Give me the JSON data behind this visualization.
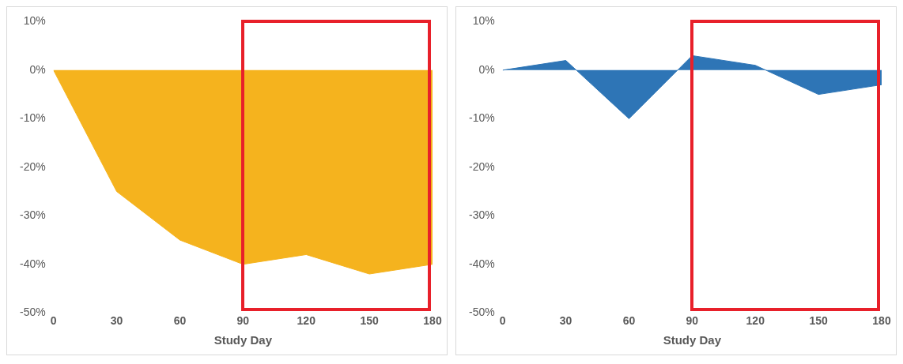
{
  "chart_data": [
    {
      "type": "area",
      "xlabel": "Study Day",
      "x": [
        0,
        30,
        60,
        90,
        120,
        150,
        180
      ],
      "values": [
        0,
        -25,
        -35,
        -40,
        -38,
        -42,
        -40
      ],
      "color": "#f5b31e",
      "xlim": [
        0,
        180
      ],
      "xticks": [
        0,
        30,
        60,
        90,
        120,
        150,
        180
      ],
      "ylim": [
        -50,
        10
      ],
      "yticks": [
        {
          "value": -50,
          "label": "-50%"
        },
        {
          "value": -40,
          "label": "-40%"
        },
        {
          "value": -30,
          "label": "-30%"
        },
        {
          "value": -20,
          "label": "-20%"
        },
        {
          "value": -10,
          "label": "-10%"
        },
        {
          "value": 0,
          "label": "0%"
        },
        {
          "value": 10,
          "label": "10%"
        }
      ],
      "grid": false,
      "legend": false
    },
    {
      "type": "area",
      "xlabel": "Study Day",
      "x": [
        0,
        30,
        60,
        90,
        120,
        150,
        180
      ],
      "values": [
        0,
        2,
        -10,
        3,
        1,
        -5,
        -3
      ],
      "color": "#2e75b6",
      "xlim": [
        0,
        180
      ],
      "xticks": [
        0,
        30,
        60,
        90,
        120,
        150,
        180
      ],
      "ylim": [
        -50,
        10
      ],
      "yticks": [
        {
          "value": -50,
          "label": "-50%"
        },
        {
          "value": -40,
          "label": "-40%"
        },
        {
          "value": -30,
          "label": "-30%"
        },
        {
          "value": -20,
          "label": "-20%"
        },
        {
          "value": -10,
          "label": "-10%"
        },
        {
          "value": 0,
          "label": "0%"
        },
        {
          "value": 10,
          "label": "10%"
        }
      ],
      "grid": false,
      "legend": false
    }
  ]
}
